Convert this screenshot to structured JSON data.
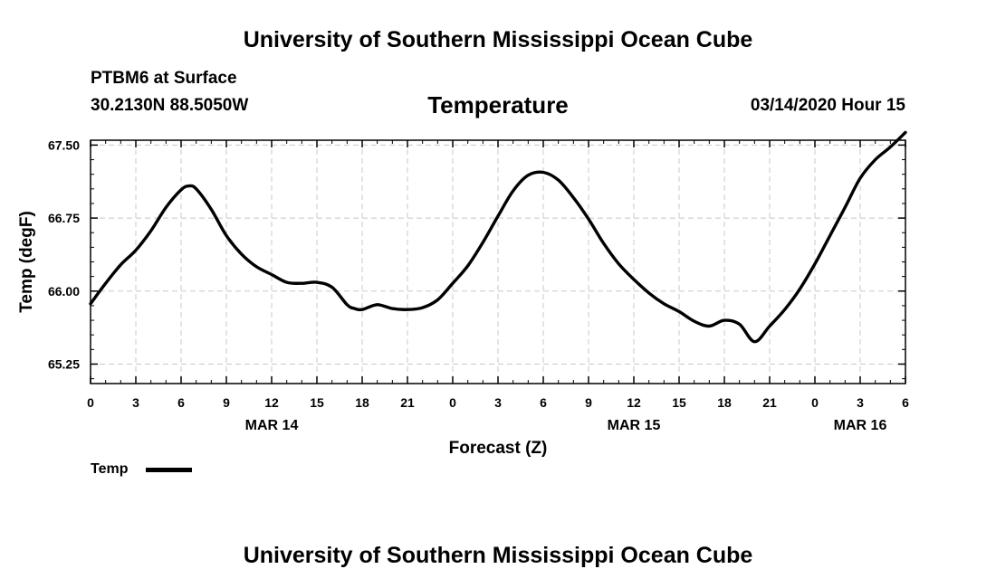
{
  "header": {
    "title_top": "University of Southern Mississippi Ocean Cube",
    "station": "PTBM6 at Surface",
    "location": "30.2130N 88.5050W",
    "plot_title": "Temperature",
    "timestamp": "03/14/2020 Hour 15"
  },
  "footer": {
    "title_bottom": "University of Southern Mississippi Ocean Cube"
  },
  "legend": {
    "label": "Temp",
    "color": "#000000"
  },
  "chart_data": {
    "type": "line",
    "title": "Temperature",
    "xlabel": "Forecast (Z)",
    "ylabel": "Temp (degF)",
    "x_unit": "hours from Mar 14 00Z",
    "xlim": [
      0,
      54
    ],
    "ylim": [
      65.05,
      67.55
    ],
    "x_tick_values": [
      0,
      3,
      6,
      9,
      12,
      15,
      18,
      21,
      24,
      27,
      30,
      33,
      36,
      39,
      42,
      45,
      48,
      51,
      54
    ],
    "x_tick_labels": [
      "0",
      "3",
      "6",
      "9",
      "12",
      "15",
      "18",
      "21",
      "0",
      "3",
      "6",
      "9",
      "12",
      "15",
      "18",
      "21",
      "0",
      "3",
      "6"
    ],
    "day_labels": [
      {
        "x": 12,
        "label": "MAR 14"
      },
      {
        "x": 36,
        "label": "MAR 15"
      },
      {
        "x": 51,
        "label": "MAR 16"
      }
    ],
    "y_ticks": [
      65.25,
      66.0,
      66.75,
      67.5
    ],
    "y_tick_labels": [
      "65.25",
      "66.00",
      "66.75",
      "67.50"
    ],
    "grid": true,
    "series": [
      {
        "name": "Temp",
        "color": "#000000",
        "x": [
          0,
          1,
          2,
          3,
          4,
          5,
          6,
          6.5,
          7,
          8,
          9,
          10,
          11,
          12,
          13,
          14,
          15,
          16,
          17,
          17.5,
          18,
          19,
          20,
          21,
          22,
          23,
          24,
          25,
          26,
          27,
          28,
          29,
          30,
          31,
          32,
          33,
          34,
          35,
          36,
          37,
          38,
          39,
          40,
          41,
          42,
          43,
          44,
          45,
          46,
          47,
          48,
          49,
          50,
          51,
          52,
          53,
          54
        ],
        "y": [
          65.87,
          66.08,
          66.27,
          66.42,
          66.62,
          66.86,
          67.04,
          67.08,
          67.05,
          66.84,
          66.57,
          66.38,
          66.25,
          66.17,
          66.09,
          66.08,
          66.09,
          66.04,
          65.86,
          65.82,
          65.81,
          65.86,
          65.82,
          65.81,
          65.83,
          65.91,
          66.08,
          66.26,
          66.5,
          66.77,
          67.03,
          67.19,
          67.22,
          67.14,
          66.96,
          66.74,
          66.49,
          66.28,
          66.12,
          65.98,
          65.87,
          65.79,
          65.69,
          65.64,
          65.7,
          65.66,
          65.48,
          65.64,
          65.81,
          66.02,
          66.28,
          66.57,
          66.86,
          67.16,
          67.35,
          67.48,
          67.63
        ]
      }
    ]
  }
}
